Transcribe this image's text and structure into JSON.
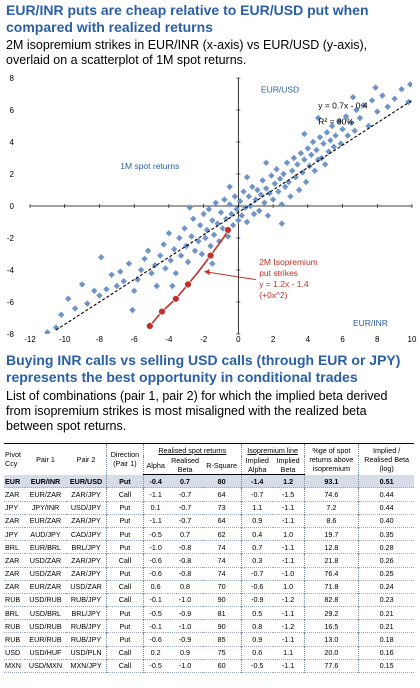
{
  "heading1": "EUR/INR puts are cheap relative to EUR/USD put when compared with realized returns",
  "subtitle1": "2M isopremium strikes in EUR/INR (x-axis) vs EUR/USD (y-axis), overlaid on a scatterplot of 1M spot returns.",
  "chart_data": {
    "type": "scatter",
    "xlabel": "EUR/INR",
    "ylabel": "EUR/USD",
    "xlim": [
      -12,
      10
    ],
    "ylim": [
      -8,
      8
    ],
    "xticks": [
      "-12",
      "-10",
      "-8",
      "-6",
      "-4",
      "-2",
      "0",
      "2",
      "4",
      "6",
      "8",
      "10"
    ],
    "yticks": [
      "-8",
      "-6",
      "-4",
      "-2",
      "0",
      "2",
      "4",
      "6",
      "8"
    ],
    "colors": {
      "scatter": "#6f94c7",
      "fit_line": "#000000",
      "curve": "#c0302c",
      "label": "#c0302c",
      "annotation": "#2a5fa6"
    },
    "scatter_annotation": "1M spot returns",
    "regression": {
      "label_eq": "y = 0.7x - 0.4",
      "label_r2": "R² = 80%",
      "slope": 0.7,
      "intercept": -0.4
    },
    "isopremium_label": [
      "2M Isopremium",
      "put strikes",
      "y = 1.2x - 1.4",
      "(+0x^2)"
    ],
    "isopremium_points": [
      {
        "x": -5.1,
        "y": -7.5
      },
      {
        "x": -4.4,
        "y": -6.6
      },
      {
        "x": -3.6,
        "y": -5.8
      },
      {
        "x": -2.9,
        "y": -4.9
      },
      {
        "x": -2.3,
        "y": -4.1
      },
      {
        "x": -1.6,
        "y": -3.1
      },
      {
        "x": -0.8,
        "y": -1.9
      },
      {
        "x": -0.6,
        "y": -1.5
      }
    ],
    "spot_returns": [
      [
        -10.5,
        -7.6
      ],
      [
        -10.2,
        -6.8
      ],
      [
        -9.4,
        -6.4
      ],
      [
        -9.0,
        -4.9
      ],
      [
        -8.7,
        -6.1
      ],
      [
        -8.3,
        -5.3
      ],
      [
        -8.0,
        -5.6
      ],
      [
        -7.6,
        -5.2
      ],
      [
        -7.3,
        -4.3
      ],
      [
        -7.0,
        -5.0
      ],
      [
        -6.8,
        -4.1
      ],
      [
        -6.6,
        -4.7
      ],
      [
        -6.3,
        -3.6
      ],
      [
        -6.0,
        -5.3
      ],
      [
        -5.8,
        -4.6
      ],
      [
        -5.6,
        -4.0
      ],
      [
        -5.4,
        -3.3
      ],
      [
        -5.2,
        -2.8
      ],
      [
        -5.0,
        -4.2
      ],
      [
        -4.8,
        -3.7
      ],
      [
        -4.7,
        -5.0
      ],
      [
        -4.5,
        -3.1
      ],
      [
        -4.3,
        -2.4
      ],
      [
        -4.2,
        -3.9
      ],
      [
        -4.0,
        -1.7
      ],
      [
        -3.9,
        -3.4
      ],
      [
        -3.7,
        -2.7
      ],
      [
        -3.6,
        -4.2
      ],
      [
        -3.4,
        -2.0
      ],
      [
        -3.3,
        -3.1
      ],
      [
        -3.1,
        -1.4
      ],
      [
        -3.0,
        -2.5
      ],
      [
        -2.9,
        -3.5
      ],
      [
        -2.7,
        -1.9
      ],
      [
        -2.6,
        -0.8
      ],
      [
        -2.5,
        -2.8
      ],
      [
        -2.3,
        -2.2
      ],
      [
        -2.2,
        -1.2
      ],
      [
        -2.1,
        -3.0
      ],
      [
        -2.0,
        -0.5
      ],
      [
        -1.9,
        -2.0
      ],
      [
        -1.8,
        -1.5
      ],
      [
        -1.7,
        -0.2
      ],
      [
        -1.6,
        -2.5
      ],
      [
        -1.5,
        -0.9
      ],
      [
        -1.4,
        -1.8
      ],
      [
        -1.3,
        0.2
      ],
      [
        -1.2,
        -1.1
      ],
      [
        -1.1,
        -2.2
      ],
      [
        -1.0,
        -0.4
      ],
      [
        -0.9,
        -1.4
      ],
      [
        -0.8,
        0.4
      ],
      [
        -0.7,
        -0.8
      ],
      [
        -0.6,
        -1.9
      ],
      [
        -0.5,
        0.1
      ],
      [
        -0.4,
        -0.5
      ],
      [
        -0.3,
        -1.2
      ],
      [
        -0.2,
        0.6
      ],
      [
        -0.1,
        -0.2
      ],
      [
        0.0,
        -0.9
      ],
      [
        0.1,
        0.3
      ],
      [
        0.2,
        -0.6
      ],
      [
        0.3,
        0.9
      ],
      [
        0.4,
        -0.1
      ],
      [
        0.5,
        -1.0
      ],
      [
        0.6,
        0.6
      ],
      [
        0.7,
        0.0
      ],
      [
        0.8,
        1.2
      ],
      [
        0.9,
        -0.5
      ],
      [
        1.0,
        0.4
      ],
      [
        1.1,
        1.0
      ],
      [
        1.2,
        -0.3
      ],
      [
        1.3,
        0.7
      ],
      [
        1.4,
        1.6
      ],
      [
        1.5,
        0.2
      ],
      [
        1.6,
        1.1
      ],
      [
        1.7,
        -0.6
      ],
      [
        1.8,
        0.8
      ],
      [
        1.9,
        1.9
      ],
      [
        2.0,
        0.4
      ],
      [
        2.1,
        1.4
      ],
      [
        2.2,
        2.3
      ],
      [
        2.3,
        0.9
      ],
      [
        2.4,
        1.7
      ],
      [
        2.5,
        0.1
      ],
      [
        2.6,
        2.0
      ],
      [
        2.7,
        1.2
      ],
      [
        2.8,
        2.7
      ],
      [
        2.9,
        1.5
      ],
      [
        3.0,
        0.6
      ],
      [
        3.1,
        2.2
      ],
      [
        3.2,
        3.0
      ],
      [
        3.3,
        1.8
      ],
      [
        3.4,
        2.6
      ],
      [
        3.5,
        1.0
      ],
      [
        3.6,
        3.3
      ],
      [
        3.7,
        2.1
      ],
      [
        3.8,
        2.9
      ],
      [
        3.9,
        1.5
      ],
      [
        4.0,
        3.6
      ],
      [
        4.1,
        2.5
      ],
      [
        4.2,
        3.2
      ],
      [
        4.3,
        4.0
      ],
      [
        4.4,
        2.2
      ],
      [
        4.5,
        3.5
      ],
      [
        4.6,
        2.9
      ],
      [
        4.7,
        4.3
      ],
      [
        4.8,
        3.0
      ],
      [
        4.9,
        3.9
      ],
      [
        5.0,
        2.6
      ],
      [
        5.1,
        4.6
      ],
      [
        5.2,
        3.4
      ],
      [
        5.3,
        4.1
      ],
      [
        5.4,
        5.0
      ],
      [
        5.5,
        3.7
      ],
      [
        5.6,
        4.4
      ],
      [
        5.8,
        5.3
      ],
      [
        5.9,
        3.9
      ],
      [
        6.0,
        4.8
      ],
      [
        6.2,
        5.6
      ],
      [
        6.3,
        4.4
      ],
      [
        6.5,
        5.2
      ],
      [
        6.7,
        4.7
      ],
      [
        6.8,
        6.0
      ],
      [
        7.0,
        5.5
      ],
      [
        7.2,
        6.3
      ],
      [
        7.5,
        5.0
      ],
      [
        7.7,
        6.6
      ],
      [
        8.0,
        5.9
      ],
      [
        8.3,
        6.9
      ],
      [
        8.6,
        6.2
      ],
      [
        9.0,
        6.7
      ],
      [
        9.4,
        7.3
      ],
      [
        9.8,
        6.5
      ],
      [
        9.9,
        7.6
      ],
      [
        6.6,
        6.8
      ],
      [
        7.9,
        7.4
      ],
      [
        -11.0,
        -7.9
      ],
      [
        -9.8,
        -5.8
      ],
      [
        -1.5,
        -3.6
      ],
      [
        -2.8,
        -0.1
      ],
      [
        0.5,
        1.8
      ],
      [
        1.6,
        2.7
      ],
      [
        2.5,
        -1.1
      ],
      [
        3.8,
        4.5
      ],
      [
        4.6,
        5.5
      ],
      [
        -0.5,
        1.2
      ],
      [
        -3.8,
        -5.0
      ],
      [
        -6.1,
        -6.5
      ],
      [
        -7.9,
        -3.2
      ]
    ]
  },
  "heading2": "Buying INR calls vs selling USD calls (through EUR or JPY) represents the best opportunity in conditional trades",
  "subtitle2": "List of combinations (pair 1, pair 2) for which the implied beta derived from isopremium strikes is most misaligned with the realized beta between spot returns.",
  "table": {
    "h_pivot_1": "Pivot",
    "h_pivot_2": "Ccy",
    "h_pair1": "Pair 1",
    "h_pair2": "Pair 2",
    "h_dir_1": "Direction",
    "h_dir_2": "(Pair 1)",
    "h_realised_group": "Realised spot returns",
    "h_alpha": "Alpha",
    "h_realised_beta_1": "Realised",
    "h_realised_beta_2": "Beta",
    "h_rsq": "R-Square",
    "h_iso_group": "Isopremium line",
    "h_impl_alpha_1": "Implied",
    "h_impl_alpha_2": "Alpha",
    "h_impl_beta_1": "Implied",
    "h_impl_beta_2": "Beta",
    "h_pct_1": "%ge of spot",
    "h_pct_2": "returns above",
    "h_pct_3": "isopremium",
    "h_ratio_1": "Implied /",
    "h_ratio_2": "Realised Beta",
    "h_ratio_3": "(log)",
    "rows": [
      [
        "EUR",
        "EUR/INR",
        "EUR/USD",
        "Put",
        "-0.4",
        "0.7",
        "80",
        "-1.4",
        "1.2",
        "93.1",
        "0.51"
      ],
      [
        "ZAR",
        "EUR/ZAR",
        "ZAR/JPY",
        "Call",
        "-1.1",
        "-0.7",
        "64",
        "-0.7",
        "-1.5",
        "74.6",
        "0.44"
      ],
      [
        "JPY",
        "JPY/INR",
        "USD/JPY",
        "Put",
        "0.1",
        "-0.7",
        "73",
        "1.1",
        "-1.1",
        "7.2",
        "0.44"
      ],
      [
        "ZAR",
        "EUR/ZAR",
        "ZAR/JPY",
        "Put",
        "-1.1",
        "-0.7",
        "64",
        "0.9",
        "-1.1",
        "8.6",
        "0.40"
      ],
      [
        "JPY",
        "AUD/JPY",
        "CAD/JPY",
        "Put",
        "-0.5",
        "0.7",
        "62",
        "0.4",
        "1.0",
        "19.7",
        "0.35"
      ],
      [
        "BRL",
        "EUR/BRL",
        "BRL/JPY",
        "Put",
        "-1.0",
        "-0.8",
        "74",
        "0.7",
        "-1.1",
        "12.8",
        "0.28"
      ],
      [
        "ZAR",
        "USD/ZAR",
        "ZAR/JPY",
        "Call",
        "-0.6",
        "-0.8",
        "74",
        "0.3",
        "-1.1",
        "21.8",
        "0.26"
      ],
      [
        "ZAR",
        "USD/ZAR",
        "ZAR/JPY",
        "Put",
        "-0.6",
        "-0.8",
        "74",
        "-0.7",
        "-1.0",
        "76.4",
        "0.25"
      ],
      [
        "ZAR",
        "EUR/ZAR",
        "USD/ZAR",
        "Call",
        "0.6",
        "0.8",
        "70",
        "-0.6",
        "1.0",
        "71.8",
        "0.24"
      ],
      [
        "RUB",
        "USD/RUB",
        "RUB/JPY",
        "Call",
        "-0.1",
        "-1.0",
        "90",
        "-0.9",
        "-1.2",
        "82.8",
        "0.23"
      ],
      [
        "BRL",
        "USD/BRL",
        "BRL/JPY",
        "Put",
        "-0.5",
        "-0.9",
        "81",
        "0.5",
        "-1.1",
        "29.2",
        "0.21"
      ],
      [
        "RUB",
        "USD/RUB",
        "RUB/JPY",
        "Put",
        "-0.1",
        "-1.0",
        "90",
        "0.8",
        "-1.2",
        "16.5",
        "0.21"
      ],
      [
        "RUB",
        "EUR/RUB",
        "RUB/JPY",
        "Put",
        "-0.6",
        "-0.9",
        "85",
        "0.9",
        "-1.1",
        "13.0",
        "0.18"
      ],
      [
        "USD",
        "USD/HUF",
        "USD/PLN",
        "Call",
        "0.2",
        "0.9",
        "75",
        "0.6",
        "1.1",
        "20.0",
        "0.16"
      ],
      [
        "MXN",
        "USD/MXN",
        "MXN/JPY",
        "Call",
        "-0.5",
        "-1.0",
        "60",
        "-0.5",
        "-1.1",
        "77.6",
        "0.15"
      ]
    ]
  }
}
